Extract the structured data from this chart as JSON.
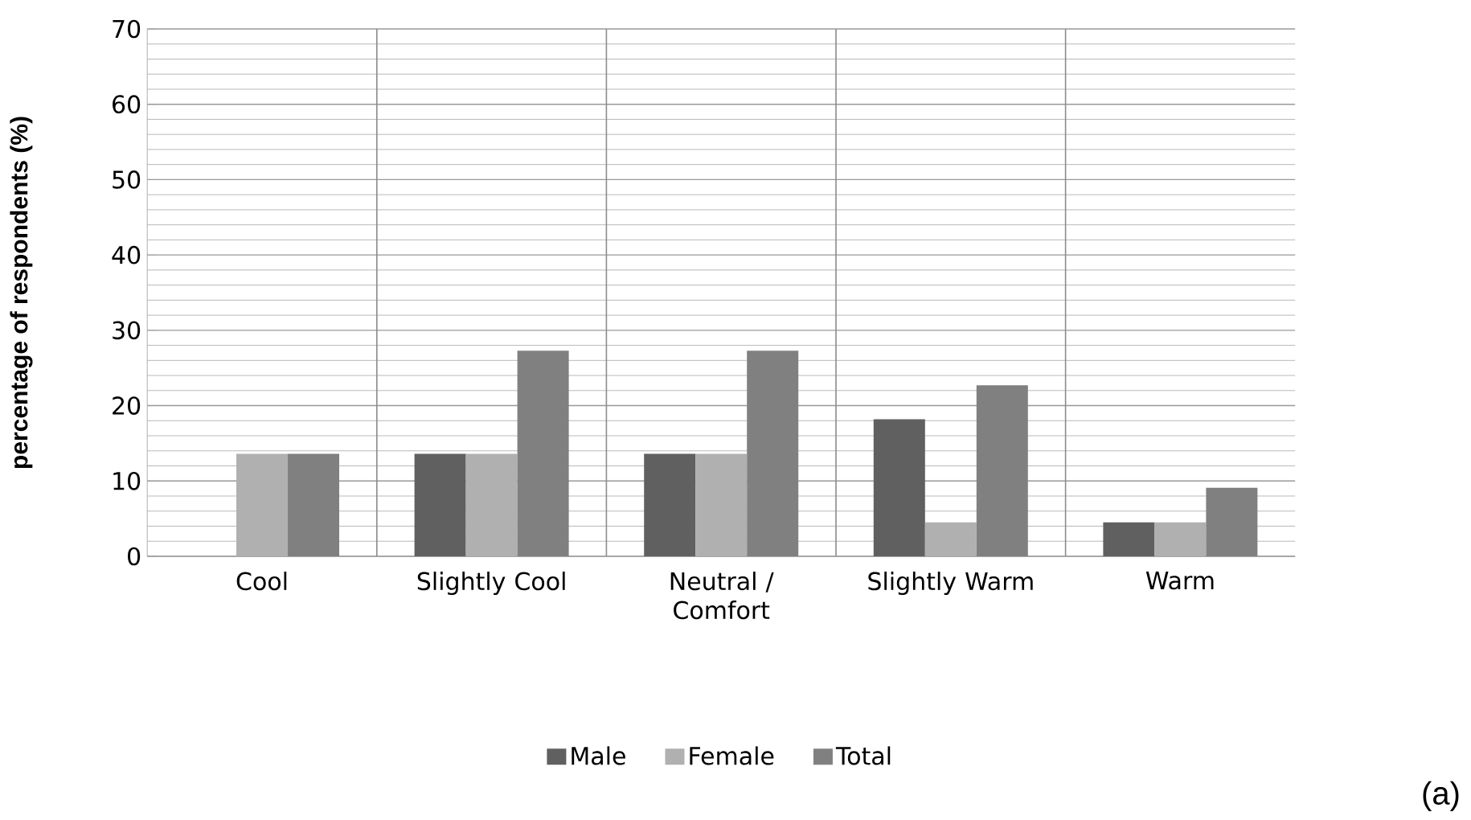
{
  "chart_data": {
    "type": "bar",
    "ylabel": "percentage of respondents (%)",
    "categories": [
      "Cool",
      "Slightly Cool",
      "Neutral / Comfort",
      "Slightly Warm",
      "Warm"
    ],
    "series": [
      {
        "name": "Male",
        "color": "#606060",
        "values": [
          0,
          13.6,
          13.6,
          18.2,
          4.5
        ]
      },
      {
        "name": "Female",
        "color": "#b0b0b0",
        "values": [
          13.6,
          13.6,
          13.6,
          4.5,
          4.5
        ]
      },
      {
        "name": "Total",
        "color": "#808080",
        "values": [
          13.6,
          27.3,
          27.3,
          22.7,
          9.1
        ]
      }
    ],
    "ylim": [
      0,
      70
    ],
    "yticks": [
      0,
      10,
      20,
      30,
      40,
      50,
      60,
      70
    ],
    "grid": true,
    "legend": "bottom",
    "annotations": [
      "(a)"
    ]
  }
}
